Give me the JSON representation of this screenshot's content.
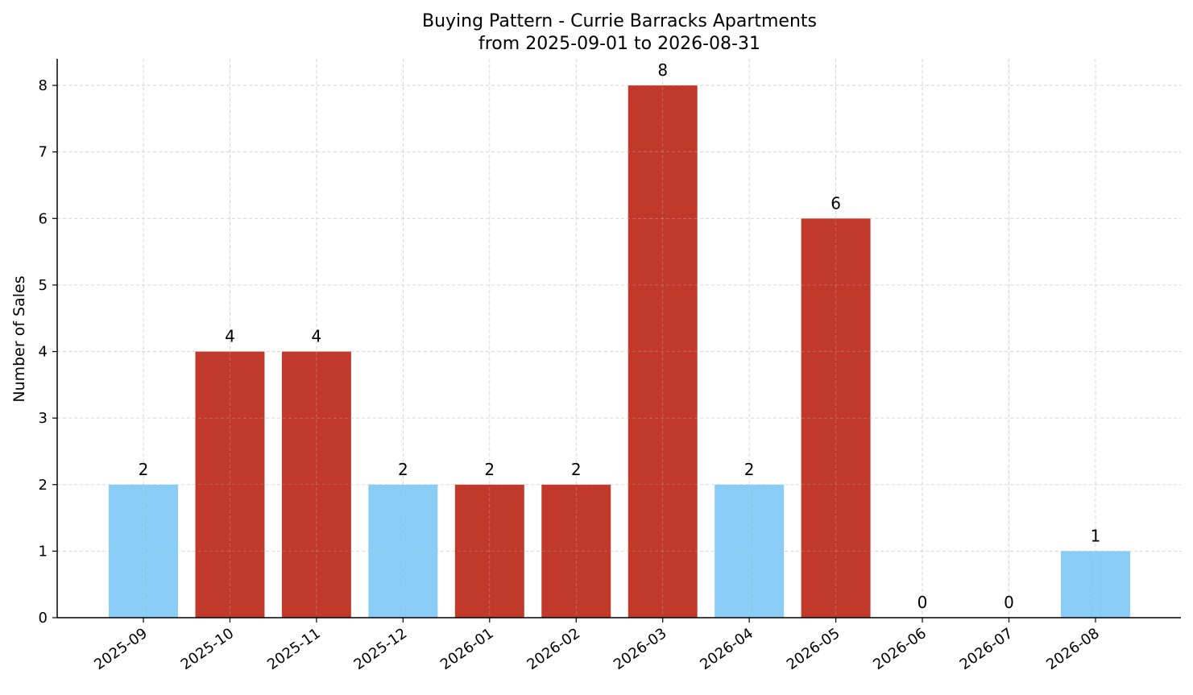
{
  "chart_data": {
    "type": "bar",
    "title": "Buying Pattern - Currie Barracks Apartments",
    "subtitle": "from 2025-09-01 to 2026-08-31",
    "xlabel": "",
    "ylabel": "Number of Sales",
    "categories": [
      "2025-09",
      "2025-10",
      "2025-11",
      "2025-12",
      "2026-01",
      "2026-02",
      "2026-03",
      "2026-04",
      "2026-05",
      "2026-06",
      "2026-07",
      "2026-08"
    ],
    "values": [
      2,
      4,
      4,
      2,
      2,
      2,
      8,
      2,
      6,
      0,
      0,
      1
    ],
    "bar_colors": [
      "#89cdf6",
      "#c0392b",
      "#c0392b",
      "#89cdf6",
      "#c0392b",
      "#c0392b",
      "#c0392b",
      "#89cdf6",
      "#c0392b",
      "#c0392b",
      "#c0392b",
      "#89cdf6"
    ],
    "ylim": [
      0,
      8.4
    ],
    "yticks": [
      0,
      1,
      2,
      3,
      4,
      5,
      6,
      7,
      8
    ],
    "grid": true,
    "legend": "none"
  }
}
